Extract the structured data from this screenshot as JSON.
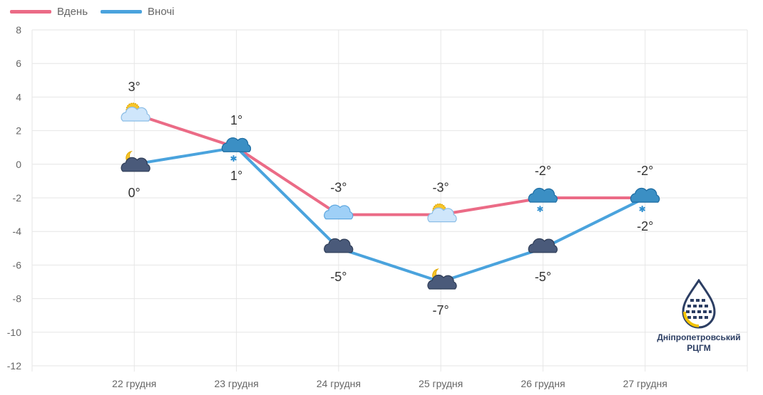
{
  "legend": {
    "day_label": "Вдень",
    "night_label": "Вночі"
  },
  "colors": {
    "day": "#EB6B86",
    "night": "#4AA3DD",
    "grid": "#e6e6e6",
    "axis_text": "#666666"
  },
  "chart_data": {
    "type": "line",
    "categories": [
      "22 грудня",
      "23 грудня",
      "24 грудня",
      "25 грудня",
      "26 грудня",
      "27 грудня"
    ],
    "series": [
      {
        "name": "Вдень",
        "values": [
          3,
          1,
          -3,
          -3,
          -2,
          -2
        ],
        "labels": [
          "3°",
          "1°",
          "-3°",
          "-3°",
          "-2°",
          "-2°"
        ],
        "icons": [
          "sun-cloud-icon",
          "cloud-snow-icon",
          "cloud-icon",
          "sun-cloud-icon",
          "cloud-snow-icon",
          "cloud-snow-icon"
        ]
      },
      {
        "name": "Вночі",
        "values": [
          0,
          1,
          -5,
          -7,
          -5,
          -2
        ],
        "labels": [
          "0°",
          "1°",
          "-5°",
          "-7°",
          "-5°",
          "-2°"
        ],
        "icons": [
          "moon-cloud-icon",
          "cloud-snow-icon",
          "dark-cloud-icon",
          "moon-cloud-icon",
          "dark-cloud-icon",
          "cloud-snow-icon"
        ]
      }
    ],
    "ylim": [
      -12,
      8
    ],
    "yticks": [
      8,
      6,
      4,
      2,
      0,
      -2,
      -4,
      -6,
      -8,
      -10,
      -12
    ],
    "grid": true,
    "legend_position": "top-left"
  },
  "logo": {
    "line1": "Дніпропетровський",
    "line2": "РЦГМ"
  }
}
